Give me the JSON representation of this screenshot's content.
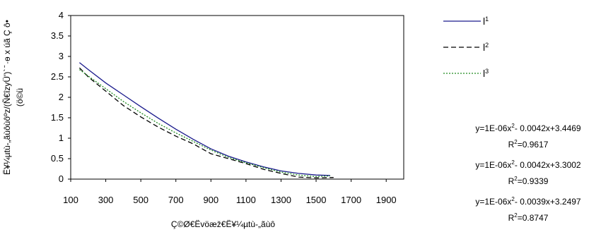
{
  "chart_data": {
    "type": "line",
    "xlabel": "Ç©Ø€Ëvöæž€Ë¥¼µtù-„ãùô",
    "ylabel_lines": [
      "Ë¥¼µtù-„ãùôùôºz/(Ñ€îzyÜ')` ̄ ·ө x úã Ç ô•",
      "(ö©ü"
    ],
    "xlim": [
      100,
      2000
    ],
    "ylim": [
      0,
      4
    ],
    "x_ticks": [
      100,
      300,
      500,
      700,
      900,
      1100,
      1300,
      1500,
      1700,
      1900
    ],
    "y_ticks": [
      0,
      0.5,
      1,
      1.5,
      2,
      2.5,
      3,
      3.5,
      4
    ],
    "x_tick_labels": [
      "100",
      "300",
      "500",
      "700",
      "900",
      "1100",
      "1300",
      "1500",
      "1700",
      "1900"
    ],
    "y_tick_labels": [
      "0",
      "0.5",
      "1",
      "1.5",
      "2",
      "2.5",
      "3",
      "3.5",
      "4"
    ],
    "grid": false,
    "legend_position": "right",
    "series": [
      {
        "name": "l1",
        "color": "#1a1a8c",
        "dash": "solid",
        "x": [
          150,
          200,
          300,
          400,
          500,
          600,
          700,
          800,
          900,
          1000,
          1100,
          1200,
          1300,
          1400,
          1500,
          1580
        ],
        "y": [
          2.85,
          2.68,
          2.35,
          2.06,
          1.77,
          1.49,
          1.22,
          0.97,
          0.74,
          0.56,
          0.42,
          0.3,
          0.2,
          0.14,
          0.1,
          0.09
        ]
      },
      {
        "name": "l2",
        "color": "#000000",
        "dash": "dashed",
        "x": [
          150,
          200,
          300,
          400,
          500,
          600,
          700,
          800,
          900,
          1000,
          1100,
          1200,
          1300,
          1400,
          1500,
          1600
        ],
        "y": [
          2.72,
          2.5,
          2.15,
          1.8,
          1.52,
          1.27,
          1.05,
          0.86,
          0.62,
          0.5,
          0.38,
          0.24,
          0.14,
          0.05,
          0.03,
          0.04
        ]
      },
      {
        "name": "l3",
        "color": "#1f8a1f",
        "dash": "dotted",
        "x": [
          150,
          200,
          300,
          400,
          500,
          600,
          700,
          800,
          900,
          1000,
          1100,
          1200,
          1300,
          1400,
          1500,
          1580
        ],
        "y": [
          2.68,
          2.52,
          2.21,
          1.9,
          1.62,
          1.36,
          1.13,
          0.92,
          0.71,
          0.53,
          0.4,
          0.28,
          0.17,
          0.1,
          0.06,
          0.08
        ]
      }
    ],
    "legend_labels": [
      {
        "base": "l",
        "sup": "1"
      },
      {
        "base": "l",
        "sup": "2"
      },
      {
        "base": "l",
        "sup": "3"
      }
    ],
    "annotations": [
      {
        "eq_prefix": "y=1E-06x",
        "eq_sup": "2",
        "eq_suffix": "- 0.0042x+3.4469",
        "r2_prefix": "R",
        "r2_sup": "2",
        "r2_value": "=0.9617"
      },
      {
        "eq_prefix": "y=1E-06x",
        "eq_sup": "2",
        "eq_suffix": "- 0.0042x+3.3002",
        "r2_prefix": "R",
        "r2_sup": "2",
        "r2_value": "=0.9339"
      },
      {
        "eq_prefix": "y=1E-06x",
        "eq_sup": "2",
        "eq_suffix": "- 0.0039x+3.2497",
        "r2_prefix": "R",
        "r2_sup": "2",
        "r2_value": "=0.8747"
      }
    ]
  }
}
